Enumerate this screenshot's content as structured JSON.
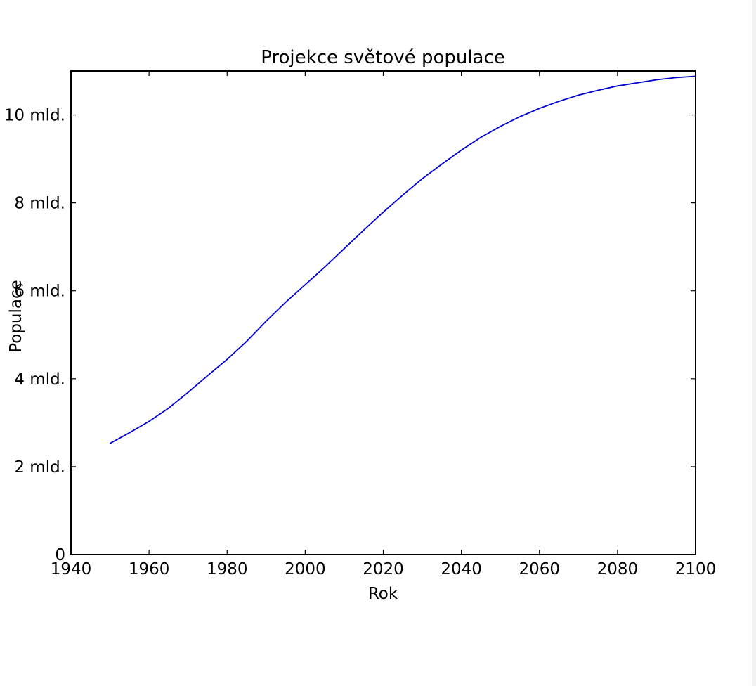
{
  "chart_data": {
    "type": "line",
    "title": "Projekce světové populace",
    "xlabel": "Rok",
    "ylabel": "Populace",
    "xlim": [
      1940,
      2100
    ],
    "ylim": [
      0,
      11
    ],
    "grid": false,
    "legend": "none",
    "x_ticks": [
      {
        "value": 1940,
        "label": "1940"
      },
      {
        "value": 1960,
        "label": "1960"
      },
      {
        "value": 1980,
        "label": "1980"
      },
      {
        "value": 2000,
        "label": "2000"
      },
      {
        "value": 2020,
        "label": "2020"
      },
      {
        "value": 2040,
        "label": "2040"
      },
      {
        "value": 2060,
        "label": "2060"
      },
      {
        "value": 2080,
        "label": "2080"
      },
      {
        "value": 2100,
        "label": "2100"
      }
    ],
    "y_ticks": [
      {
        "value": 0,
        "label": "0"
      },
      {
        "value": 2,
        "label": "2 mld."
      },
      {
        "value": 4,
        "label": "4 mld."
      },
      {
        "value": 6,
        "label": "6 mld."
      },
      {
        "value": 8,
        "label": "8 mld."
      },
      {
        "value": 10,
        "label": "10 mld."
      }
    ],
    "series": [
      {
        "color": "#0000cc",
        "x": [
          1950,
          1955,
          1960,
          1965,
          1970,
          1975,
          1980,
          1985,
          1990,
          1995,
          2000,
          2005,
          2010,
          2015,
          2020,
          2025,
          2030,
          2035,
          2040,
          2045,
          2050,
          2055,
          2060,
          2065,
          2070,
          2075,
          2080,
          2085,
          2090,
          2095,
          2100
        ],
        "values": [
          2.53,
          2.77,
          3.03,
          3.33,
          3.69,
          4.07,
          4.44,
          4.85,
          5.31,
          5.74,
          6.14,
          6.54,
          6.96,
          7.38,
          7.79,
          8.18,
          8.55,
          8.88,
          9.2,
          9.49,
          9.74,
          9.96,
          10.15,
          10.31,
          10.45,
          10.56,
          10.66,
          10.73,
          10.8,
          10.85,
          10.88
        ]
      }
    ]
  }
}
